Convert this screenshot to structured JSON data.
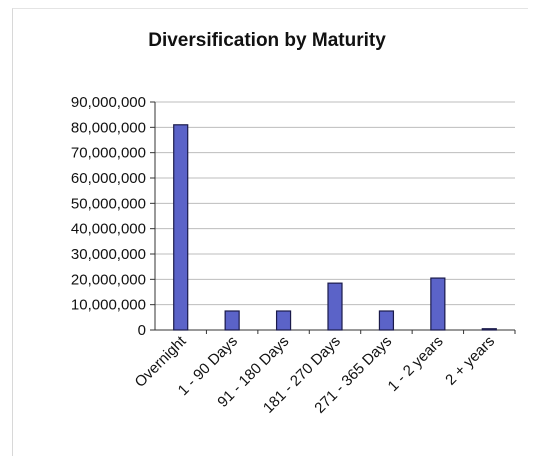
{
  "chart_data": {
    "type": "bar",
    "title": "Diversification by Maturity",
    "categories": [
      "Overnight",
      "1 - 90 Days",
      "91 - 180 Days",
      "181 - 270 Days",
      "271 - 365 Days",
      "1 - 2 years",
      "2 + years"
    ],
    "values": [
      81000000,
      7500000,
      7500000,
      18500000,
      7500000,
      20500000,
      500000
    ],
    "ylim": [
      0,
      90000000
    ],
    "yticks": [
      0,
      10000000,
      20000000,
      30000000,
      40000000,
      50000000,
      60000000,
      70000000,
      80000000,
      90000000
    ],
    "ytick_labels": [
      "0",
      "10,000,000",
      "20,000,000",
      "30,000,000",
      "40,000,000",
      "50,000,000",
      "60,000,000",
      "70,000,000",
      "80,000,000",
      "90,000,000"
    ],
    "grid": true,
    "bar_color": "#5b63c8",
    "bar_border": "#1a1a4a"
  }
}
